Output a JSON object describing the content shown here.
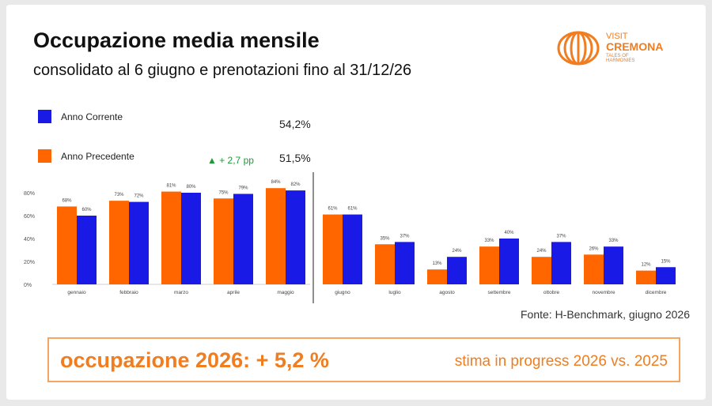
{
  "header": {
    "title": "Occupazione media mensile",
    "subtitle": "consolidato al 6 giugno e prenotazioni fino al 31/12/26"
  },
  "logo": {
    "line1": "VISIT",
    "line2": "CREMONA",
    "line3": "TALES OF",
    "line4": "HARMONIES",
    "color": "#f07d1f"
  },
  "legend": {
    "current": {
      "label": "Anno Corrente",
      "value": "54,2%",
      "color": "#1a1ae6"
    },
    "previous": {
      "label": "Anno Precedente",
      "value": "51,5%",
      "color": "#ff6600"
    },
    "delta": "▲ + 2,7 pp"
  },
  "chart_data": {
    "type": "bar",
    "categories": [
      "gennaio",
      "febbraio",
      "marzo",
      "aprile",
      "maggio",
      "giugno",
      "luglio",
      "agosto",
      "settembre",
      "ottobre",
      "novembre",
      "dicembre"
    ],
    "series": [
      {
        "name": "Anno Precedente",
        "color": "#ff6600",
        "values": [
          68,
          73,
          81,
          75,
          84,
          61,
          35,
          13,
          33,
          24,
          26,
          12
        ]
      },
      {
        "name": "Anno Corrente",
        "color": "#1a1ae6",
        "values": [
          60,
          72,
          80,
          79,
          82,
          61,
          37,
          24,
          40,
          37,
          33,
          15
        ]
      }
    ],
    "yticks": [
      "80%",
      "60%",
      "40%",
      "20%",
      "0%"
    ],
    "ylim": [
      0,
      80
    ],
    "split_after": "maggio"
  },
  "source": "Fonte: H-Benchmark, giugno 2026",
  "highlight": {
    "main": "occupazione 2026: + 5,2 %",
    "sub": "stima in progress 2026 vs. 2025"
  }
}
